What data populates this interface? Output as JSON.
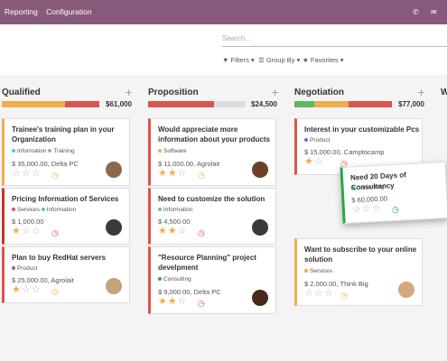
{
  "nav": {
    "reporting": "Reporting",
    "configuration": "Configuration"
  },
  "search": {
    "placeholder": "Search..."
  },
  "filters": {
    "filters": "Filters",
    "group_by": "Group By",
    "favorites": "Favorites"
  },
  "columns": [
    {
      "title": "Qualified",
      "total": "$61,000",
      "bar": [
        [
          "#f0ad4e",
          0.65
        ],
        [
          "#d9534f",
          0.35
        ]
      ]
    },
    {
      "title": "Proposition",
      "total": "$24,500",
      "bar": [
        [
          "#d9534f",
          0.75
        ],
        [
          "#ddd",
          0.25
        ]
      ]
    },
    {
      "title": "Negotiation",
      "total": "$77,000",
      "bar": [
        [
          "#5cb85c",
          0.15
        ],
        [
          "#f0ad4e",
          0.35
        ],
        [
          "#d9534f",
          0.5
        ]
      ]
    },
    {
      "title": "W",
      "total": "",
      "bar": []
    }
  ],
  "cards": [
    {
      "title1": "Trainee's training plan in your",
      "title2": "Organization",
      "tag1": "Information",
      "tag2": "Training",
      "amount": "$ 35,000.00, Delta PC",
      "stars": 0,
      "activity": "clock",
      "avatar": "avatar"
    },
    {
      "title1": "Pricing Information of Services",
      "title2": "",
      "tag1": "Services",
      "tag2": "Information",
      "amount": "$ 1,000.00",
      "stars": 1,
      "activity": "clock",
      "avatar": "avatar"
    },
    {
      "title1": "Plan to buy RedHat servers",
      "title2": "",
      "tag1": "Product",
      "tag2": "",
      "amount": "$ 25,000.00, Agrolait",
      "stars": 1,
      "activity": "clock",
      "avatar": "avatar"
    },
    {
      "title1": "Would appreciate more",
      "title2": "information about your products",
      "tag1": "Software",
      "tag2": "",
      "amount": "$ 11,000.00, Agrolait",
      "stars": 2,
      "activity": "clock",
      "avatar": "avatar"
    },
    {
      "title1": "Need to customize the solution",
      "title2": "",
      "tag1": "Information",
      "tag2": "",
      "amount": "$ 4,500.00",
      "stars": 2,
      "activity": "clock",
      "avatar": "avatar"
    },
    {
      "title1": "\"Resource Planning\" project",
      "title2": "develpment",
      "tag1": "Consulting",
      "tag2": "",
      "amount": "$ 9,000.00, Delta PC",
      "stars": 2,
      "activity": "clock",
      "avatar": "avatar"
    },
    {
      "title1": "Interest in your customizable Pcs",
      "title2": "",
      "tag1": "Product",
      "tag2": "",
      "amount": "$ 15,000.00, Camptocamp",
      "stars": 1,
      "activity": "clock",
      "avatar": "avatar"
    },
    {
      "title1": "Need 20 Days of Consultancy",
      "title2": "",
      "tag1": "Consulting",
      "tag2": "",
      "amount": "$ 60,000.00",
      "stars": 0,
      "activity": "clock",
      "avatar": ""
    },
    {
      "title1": "Want to subscribe to your online",
      "title2": "solution",
      "tag1": "Services",
      "tag2": "",
      "amount": "$ 2,000.00, Think Big",
      "stars": 0,
      "activity": "clock",
      "avatar": "avatar"
    }
  ],
  "colors": {
    "brand": "#875a7b",
    "star": "#f0ad4e",
    "red": "#d9534f",
    "green": "#28a745"
  }
}
